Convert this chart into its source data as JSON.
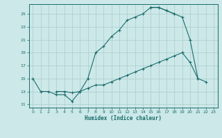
{
  "xlabel": "Humidex (Indice chaleur)",
  "bg_color": "#cce8e8",
  "line_color": "#1a6b6b",
  "grid_color": "#aacccc",
  "xlim": [
    -0.5,
    23.5
  ],
  "ylim": [
    10.5,
    26.5
  ],
  "xticks": [
    0,
    1,
    2,
    3,
    4,
    5,
    6,
    7,
    8,
    9,
    10,
    11,
    12,
    13,
    14,
    15,
    16,
    17,
    18,
    19,
    20,
    21,
    22,
    23
  ],
  "yticks": [
    11,
    13,
    15,
    17,
    19,
    21,
    23,
    25
  ],
  "curve1_x": [
    0,
    1,
    2,
    3,
    4,
    5,
    6,
    7,
    8,
    9,
    10,
    11,
    12,
    13,
    14,
    15,
    16,
    17,
    18
  ],
  "curve1_y": [
    15,
    13,
    13,
    12.5,
    12.5,
    11.5,
    13,
    15,
    19,
    20,
    21.5,
    22.5,
    24,
    24.5,
    25,
    26,
    26,
    25.5,
    25
  ],
  "curve2_x": [
    15,
    16,
    17,
    18,
    19,
    20,
    21
  ],
  "curve2_y": [
    26,
    26,
    25.5,
    25,
    24.5,
    21,
    15
  ],
  "curve3_x": [
    3,
    4,
    5,
    6,
    7,
    8,
    9,
    10,
    11,
    12,
    13,
    14,
    15,
    16,
    17,
    18,
    19
  ],
  "curve3_y": [
    13,
    13,
    12.8,
    13,
    13.5,
    14,
    14,
    14.5,
    15,
    15.5,
    16,
    16.5,
    17,
    17.5,
    18,
    18.5,
    19
  ],
  "curve4_x": [
    19,
    20,
    21,
    22
  ],
  "curve4_y": [
    19,
    17.5,
    15,
    14.5
  ]
}
